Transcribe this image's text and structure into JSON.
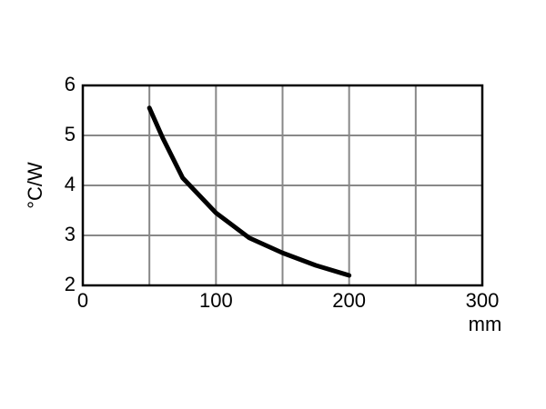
{
  "chart_data": {
    "type": "line",
    "x_label": "mm",
    "y_label": "°C/W",
    "x": [
      50,
      60,
      75,
      100,
      125,
      150,
      175,
      200
    ],
    "series": [
      {
        "color": "#000000",
        "values": [
          5.55,
          4.95,
          4.15,
          3.45,
          2.95,
          2.65,
          2.4,
          2.2
        ]
      }
    ],
    "xlim": [
      0,
      300
    ],
    "xticks": [
      0,
      100,
      200,
      300
    ],
    "xminorticks": [
      50,
      150,
      250
    ],
    "ylim": [
      2,
      6
    ],
    "yticks": [
      2,
      3,
      4,
      5,
      6
    ],
    "grid": true
  }
}
